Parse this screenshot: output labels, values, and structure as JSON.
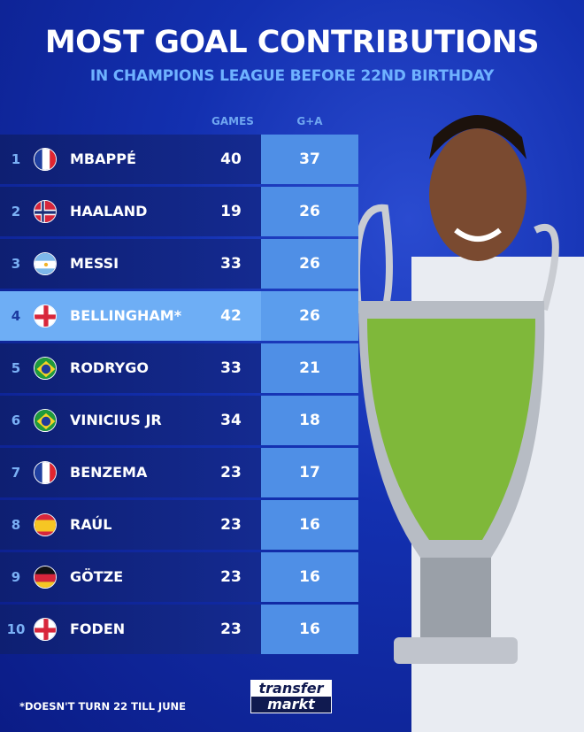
{
  "header": {
    "title": "MOST GOAL CONTRIBUTIONS",
    "subtitle": "IN CHAMPIONS LEAGUE BEFORE 22ND BIRTHDAY"
  },
  "chart_data": {
    "type": "table",
    "title": "MOST GOAL CONTRIBUTIONS",
    "subtitle": "IN CHAMPIONS LEAGUE BEFORE 22ND BIRTHDAY",
    "columns": [
      "GAMES",
      "G+A"
    ],
    "rows": [
      {
        "rank": "1",
        "flag": "france",
        "name": "MBAPPÉ",
        "games": "40",
        "ga": "37"
      },
      {
        "rank": "2",
        "flag": "norway",
        "name": "HAALAND",
        "games": "19",
        "ga": "26"
      },
      {
        "rank": "3",
        "flag": "argentina",
        "name": "MESSI",
        "games": "33",
        "ga": "26"
      },
      {
        "rank": "4",
        "flag": "england",
        "name": "BELLINGHAM*",
        "games": "42",
        "ga": "26",
        "highlighted": true
      },
      {
        "rank": "5",
        "flag": "brazil",
        "name": "RODRYGO",
        "games": "33",
        "ga": "21"
      },
      {
        "rank": "6",
        "flag": "brazil",
        "name": "VINICIUS JR",
        "games": "34",
        "ga": "18"
      },
      {
        "rank": "7",
        "flag": "france",
        "name": "BENZEMA",
        "games": "23",
        "ga": "17"
      },
      {
        "rank": "8",
        "flag": "spain",
        "name": "RAÚL",
        "games": "23",
        "ga": "16"
      },
      {
        "rank": "9",
        "flag": "germany",
        "name": "GÖTZE",
        "games": "23",
        "ga": "16"
      },
      {
        "rank": "10",
        "flag": "england",
        "name": "FODEN",
        "games": "23",
        "ga": "16"
      }
    ]
  },
  "footnote": "*DOESN'T TURN 22 TILL JUNE",
  "logo": {
    "line1": "transfer",
    "line2": "markt"
  },
  "colors": {
    "background": "#1330b0",
    "ga_column": "#4f8fe6",
    "highlight": "#6eaef5",
    "title": "#ffffff",
    "subtitle": "#6fb2ff"
  }
}
